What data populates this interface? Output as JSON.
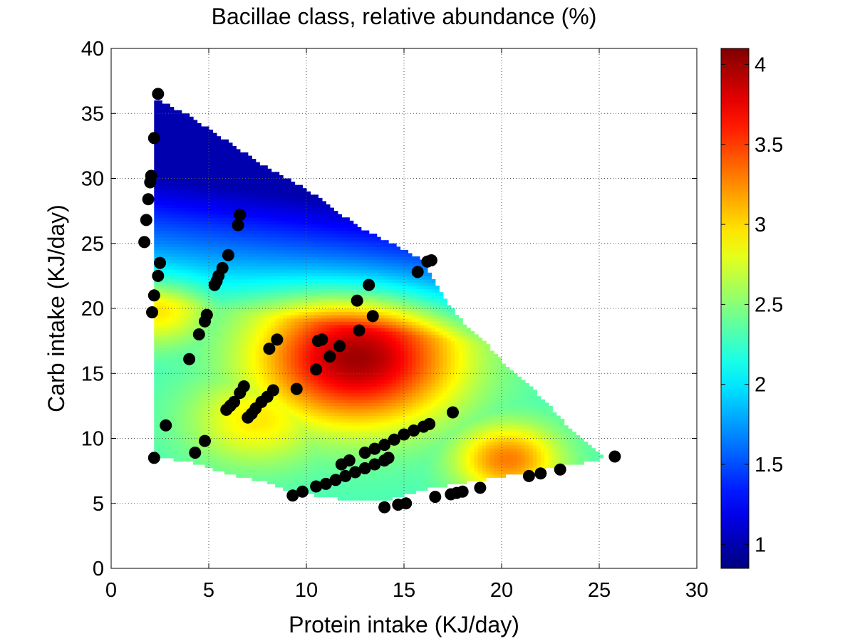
{
  "chart_data": {
    "type": "heatmap",
    "title": "Bacillae class, relative abundance (%)",
    "xlabel": "Protein intake (KJ/day)",
    "ylabel": "Carb intake (KJ/day)",
    "xlim": [
      0,
      30
    ],
    "ylim": [
      0,
      40
    ],
    "xticks": [
      0,
      5,
      10,
      15,
      20,
      25,
      30
    ],
    "yticks": [
      0,
      5,
      10,
      15,
      20,
      25,
      30,
      35,
      40
    ],
    "grid": true,
    "colormap": "jet",
    "colorbar": {
      "range": [
        0.85,
        4.1
      ],
      "ticks": [
        "1",
        "1.5",
        "2",
        "2.5",
        "3",
        "3.5",
        "4"
      ]
    },
    "surface": {
      "domain_vertices": [
        [
          2.3,
          36
        ],
        [
          3,
          35.6
        ],
        [
          4,
          34.8
        ],
        [
          5,
          33.8
        ],
        [
          6,
          32.8
        ],
        [
          7,
          31.8
        ],
        [
          8,
          30.8
        ],
        [
          9,
          30
        ],
        [
          10,
          29.2
        ],
        [
          11,
          28.1
        ],
        [
          12,
          27
        ],
        [
          13,
          26
        ],
        [
          14,
          25.3
        ],
        [
          15,
          24.5
        ],
        [
          16,
          23.7
        ],
        [
          17,
          20.9
        ],
        [
          18,
          19
        ],
        [
          19,
          17.7
        ],
        [
          20,
          16
        ],
        [
          21,
          14.7
        ],
        [
          22,
          13.2
        ],
        [
          23,
          11.6
        ],
        [
          24,
          10
        ],
        [
          25,
          8.8
        ],
        [
          25.5,
          8.5
        ],
        [
          24.5,
          8.2
        ],
        [
          22,
          7.6
        ],
        [
          20,
          7.1
        ],
        [
          18,
          6.6
        ],
        [
          16,
          6.1
        ],
        [
          14,
          5.2
        ],
        [
          12.5,
          5.2
        ],
        [
          11,
          5.5
        ],
        [
          9.5,
          5.8
        ],
        [
          8,
          6.6
        ],
        [
          6,
          7.3
        ],
        [
          4,
          8.2
        ],
        [
          3,
          8.4
        ],
        [
          2.2,
          8.6
        ],
        [
          2.1,
          16.3
        ],
        [
          2.2,
          28
        ],
        [
          2.3,
          36
        ]
      ],
      "peaks": [
        {
          "x": 12.6,
          "y": 16.2,
          "value": 4.0,
          "spread": 3.6
        },
        {
          "x": 20.3,
          "y": 8.4,
          "value": 3.3,
          "spread": 1.9
        },
        {
          "x": 2.4,
          "y": 19.8,
          "value": 2.95,
          "spread": 1.8
        },
        {
          "x": 7.5,
          "y": 11.5,
          "value": 2.95,
          "spread": 2.5
        }
      ],
      "low_ridge": {
        "direction": [
          0.2,
          1.0
        ],
        "offset": 21.0,
        "min": 1.0,
        "scale": 9.5
      },
      "base": 2.3
    },
    "points": [
      [
        2.4,
        36.5
      ],
      [
        2.2,
        33.1
      ],
      [
        2.05,
        30.2
      ],
      [
        2.0,
        29.7
      ],
      [
        1.9,
        28.4
      ],
      [
        1.8,
        26.8
      ],
      [
        1.7,
        25.1
      ],
      [
        2.5,
        23.5
      ],
      [
        2.4,
        22.5
      ],
      [
        2.2,
        21.0
      ],
      [
        2.1,
        19.7
      ],
      [
        2.2,
        8.5
      ],
      [
        2.8,
        11.0
      ],
      [
        6.6,
        27.2
      ],
      [
        6.5,
        26.4
      ],
      [
        6.0,
        24.1
      ],
      [
        5.7,
        23.1
      ],
      [
        5.5,
        22.5
      ],
      [
        5.4,
        22.1
      ],
      [
        5.3,
        21.8
      ],
      [
        4.9,
        19.5
      ],
      [
        4.8,
        19.0
      ],
      [
        4.5,
        18.0
      ],
      [
        4.0,
        16.1
      ],
      [
        4.8,
        9.8
      ],
      [
        4.3,
        8.9
      ],
      [
        6.8,
        14.0
      ],
      [
        6.6,
        13.5
      ],
      [
        6.3,
        12.8
      ],
      [
        6.1,
        12.5
      ],
      [
        5.9,
        12.2
      ],
      [
        8.5,
        17.6
      ],
      [
        8.1,
        16.9
      ],
      [
        8.3,
        13.7
      ],
      [
        8.0,
        13.2
      ],
      [
        7.7,
        12.8
      ],
      [
        7.4,
        12.3
      ],
      [
        7.2,
        11.9
      ],
      [
        7.0,
        11.6
      ],
      [
        9.5,
        13.8
      ],
      [
        10.6,
        17.5
      ],
      [
        10.8,
        17.6
      ],
      [
        11.2,
        16.3
      ],
      [
        11.7,
        17.1
      ],
      [
        10.5,
        15.3
      ],
      [
        12.6,
        20.6
      ],
      [
        13.2,
        21.8
      ],
      [
        13.4,
        19.4
      ],
      [
        12.7,
        18.3
      ],
      [
        15.7,
        22.8
      ],
      [
        16.2,
        23.6
      ],
      [
        16.4,
        23.7
      ],
      [
        17.5,
        12.0
      ],
      [
        9.3,
        5.6
      ],
      [
        9.8,
        5.9
      ],
      [
        10.5,
        6.3
      ],
      [
        11.0,
        6.5
      ],
      [
        11.5,
        6.8
      ],
      [
        12.0,
        7.1
      ],
      [
        12.5,
        7.4
      ],
      [
        13.0,
        7.7
      ],
      [
        13.5,
        8.0
      ],
      [
        14.0,
        8.3
      ],
      [
        14.2,
        8.5
      ],
      [
        11.8,
        8.0
      ],
      [
        12.2,
        8.3
      ],
      [
        13.0,
        8.9
      ],
      [
        13.5,
        9.2
      ],
      [
        14.0,
        9.5
      ],
      [
        14.5,
        9.9
      ],
      [
        15.0,
        10.3
      ],
      [
        15.5,
        10.6
      ],
      [
        16.0,
        10.9
      ],
      [
        16.3,
        11.1
      ],
      [
        14.0,
        4.7
      ],
      [
        14.7,
        4.9
      ],
      [
        15.1,
        5.0
      ],
      [
        16.6,
        5.5
      ],
      [
        17.4,
        5.7
      ],
      [
        17.7,
        5.8
      ],
      [
        18.0,
        5.9
      ],
      [
        18.9,
        6.2
      ],
      [
        21.4,
        7.1
      ],
      [
        22.0,
        7.3
      ],
      [
        23.0,
        7.6
      ],
      [
        25.8,
        8.6
      ]
    ]
  }
}
